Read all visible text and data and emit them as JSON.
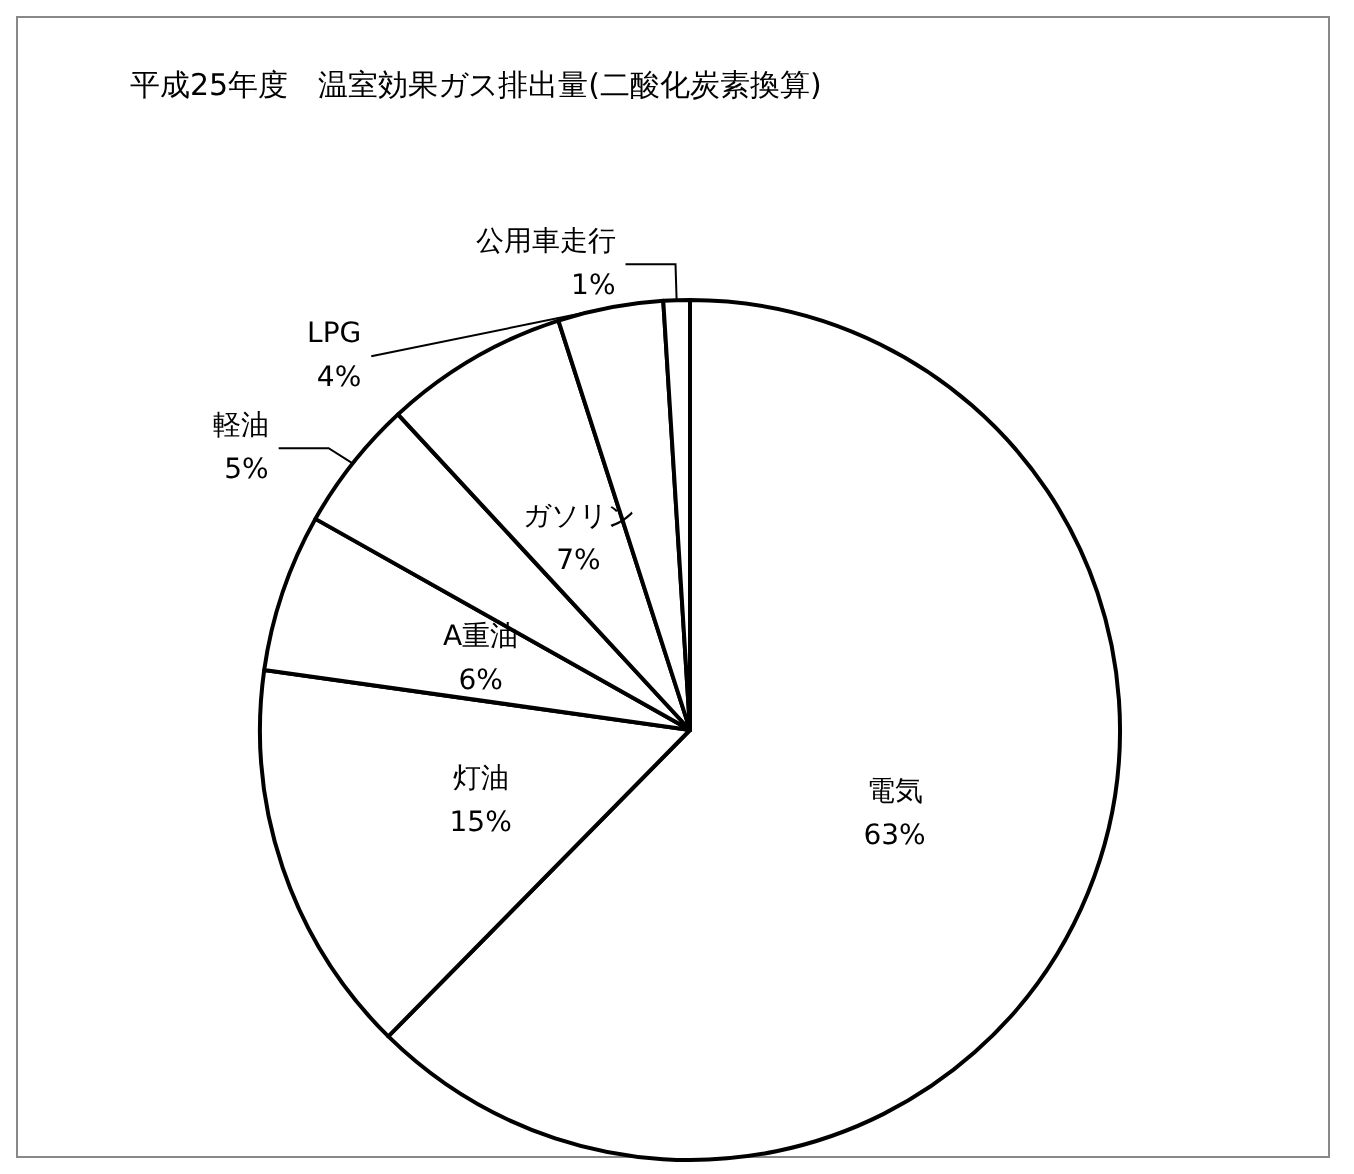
{
  "chart_data": {
    "type": "pie",
    "title": "平成25年度　温室効果ガス排出量(二酸化炭素換算)",
    "categories": [
      "電気",
      "灯油",
      "A重油",
      "軽油",
      "ガソリン",
      "LPG",
      "公用車走行"
    ],
    "values": [
      63,
      15,
      6,
      5,
      7,
      4,
      1
    ],
    "colors": [
      "#ffffff",
      "#ffffff",
      "#ffffff",
      "#ffffff",
      "#ffffff",
      "#ffffff",
      "#ffffff"
    ],
    "value_labels": [
      "63%",
      "15%",
      "6%",
      "5%",
      "7%",
      "4%",
      "1%"
    ],
    "legend": false
  }
}
